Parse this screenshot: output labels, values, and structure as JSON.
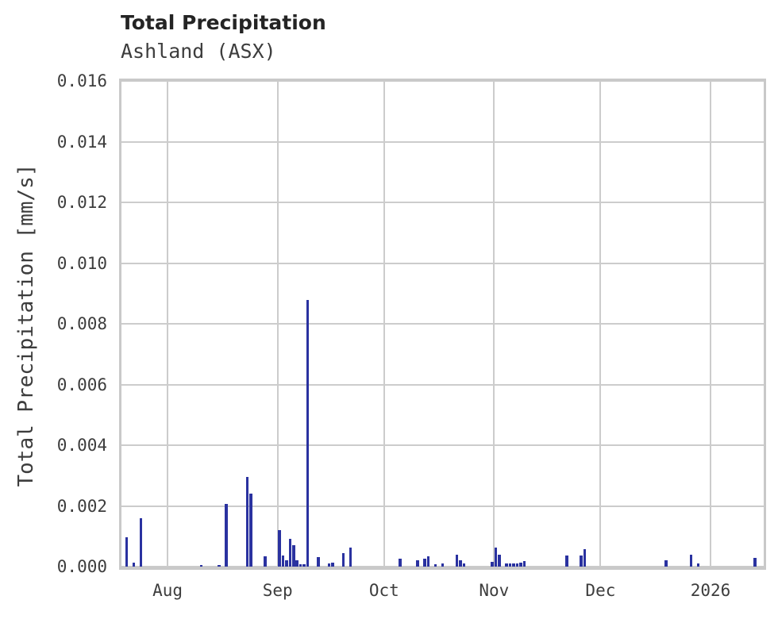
{
  "header": {
    "title": "Total Precipitation",
    "subtitle": "Ashland (ASX)"
  },
  "colors": {
    "bar": "#2a32a0",
    "grid": "#cccccc",
    "spine": "#c9c9c9",
    "title_text": "#242424",
    "tick_text": "#3d3d3d",
    "background": "#ffffff"
  },
  "chart_data": {
    "type": "bar",
    "title": "Total Precipitation",
    "subtitle": "Ashland (ASX)",
    "xlabel": "",
    "ylabel": "Total Precipitation [mm/s]",
    "ylim": [
      0,
      0.016
    ],
    "grid": true,
    "legend": "none",
    "x_domain": [
      "2025-07-19",
      "2026-01-16"
    ],
    "yticks": [
      {
        "value": 0.0,
        "label": "0.000"
      },
      {
        "value": 0.002,
        "label": "0.002"
      },
      {
        "value": 0.004,
        "label": "0.004"
      },
      {
        "value": 0.006,
        "label": "0.006"
      },
      {
        "value": 0.008,
        "label": "0.008"
      },
      {
        "value": 0.01,
        "label": "0.010"
      },
      {
        "value": 0.012,
        "label": "0.012"
      },
      {
        "value": 0.014,
        "label": "0.014"
      },
      {
        "value": 0.016,
        "label": "0.016"
      }
    ],
    "xticks": [
      {
        "date": "2025-08-01",
        "label": "Aug"
      },
      {
        "date": "2025-09-01",
        "label": "Sep"
      },
      {
        "date": "2025-10-01",
        "label": "Oct"
      },
      {
        "date": "2025-11-01",
        "label": "Nov"
      },
      {
        "date": "2025-12-01",
        "label": "Dec"
      },
      {
        "date": "2026-01-01",
        "label": "2026"
      }
    ],
    "series": [
      {
        "name": "Total Precipitation",
        "points": [
          {
            "date": "2025-07-20",
            "value": 0.00096
          },
          {
            "date": "2025-07-22",
            "value": 0.00013
          },
          {
            "date": "2025-07-24",
            "value": 0.0016
          },
          {
            "date": "2025-08-10",
            "value": 6e-05
          },
          {
            "date": "2025-08-15",
            "value": 5e-05
          },
          {
            "date": "2025-08-17",
            "value": 0.00207
          },
          {
            "date": "2025-08-23",
            "value": 0.00296
          },
          {
            "date": "2025-08-24",
            "value": 0.00241
          },
          {
            "date": "2025-08-28",
            "value": 0.00033
          },
          {
            "date": "2025-09-01",
            "value": 0.0012
          },
          {
            "date": "2025-09-02",
            "value": 0.00037
          },
          {
            "date": "2025-09-03",
            "value": 0.0002
          },
          {
            "date": "2025-09-04",
            "value": 0.00091
          },
          {
            "date": "2025-09-05",
            "value": 0.00071
          },
          {
            "date": "2025-09-06",
            "value": 0.0002
          },
          {
            "date": "2025-09-07",
            "value": 9e-05
          },
          {
            "date": "2025-09-08",
            "value": 9e-05
          },
          {
            "date": "2025-09-09",
            "value": 0.00878
          },
          {
            "date": "2025-09-12",
            "value": 0.00032
          },
          {
            "date": "2025-09-15",
            "value": 0.0001
          },
          {
            "date": "2025-09-16",
            "value": 0.00012
          },
          {
            "date": "2025-09-19",
            "value": 0.00045
          },
          {
            "date": "2025-09-21",
            "value": 0.00062
          },
          {
            "date": "2025-10-05",
            "value": 0.00025
          },
          {
            "date": "2025-10-10",
            "value": 0.0002
          },
          {
            "date": "2025-10-12",
            "value": 0.00026
          },
          {
            "date": "2025-10-13",
            "value": 0.00033
          },
          {
            "date": "2025-10-15",
            "value": 7e-05
          },
          {
            "date": "2025-10-17",
            "value": 0.0001
          },
          {
            "date": "2025-10-21",
            "value": 0.0004
          },
          {
            "date": "2025-10-22",
            "value": 0.00022
          },
          {
            "date": "2025-10-23",
            "value": 0.0001
          },
          {
            "date": "2025-10-31",
            "value": 0.00015
          },
          {
            "date": "2025-11-01",
            "value": 0.00062
          },
          {
            "date": "2025-11-02",
            "value": 0.0004
          },
          {
            "date": "2025-11-04",
            "value": 0.0001
          },
          {
            "date": "2025-11-05",
            "value": 0.0001
          },
          {
            "date": "2025-11-06",
            "value": 0.0001
          },
          {
            "date": "2025-11-07",
            "value": 0.0001
          },
          {
            "date": "2025-11-08",
            "value": 0.00012
          },
          {
            "date": "2025-11-09",
            "value": 0.00018
          },
          {
            "date": "2025-11-21",
            "value": 0.00037
          },
          {
            "date": "2025-11-25",
            "value": 0.00036
          },
          {
            "date": "2025-11-26",
            "value": 0.00058
          },
          {
            "date": "2025-12-19",
            "value": 0.0002
          },
          {
            "date": "2025-12-26",
            "value": 0.0004
          },
          {
            "date": "2025-12-28",
            "value": 0.0001
          },
          {
            "date": "2026-01-13",
            "value": 0.00028
          }
        ]
      }
    ]
  }
}
